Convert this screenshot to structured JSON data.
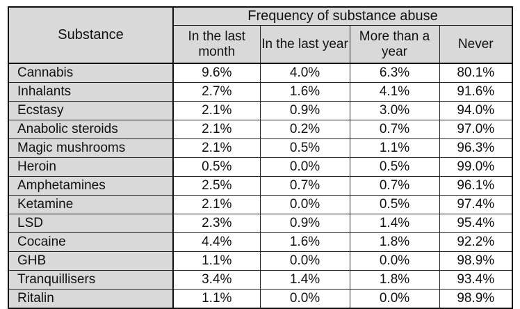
{
  "table": {
    "substance_header": "Substance",
    "group_header": "Frequency of substance abuse",
    "columns": [
      "In the last month",
      "In the last year",
      "More than a year",
      "Never"
    ],
    "rows": [
      {
        "name": "Cannabis",
        "values": [
          "9.6%",
          "4.0%",
          "6.3%",
          "80.1%"
        ]
      },
      {
        "name": "Inhalants",
        "values": [
          "2.7%",
          "1.6%",
          "4.1%",
          "91.6%"
        ]
      },
      {
        "name": "Ecstasy",
        "values": [
          "2.1%",
          "0.9%",
          "3.0%",
          "94.0%"
        ]
      },
      {
        "name": "Anabolic steroids",
        "values": [
          "2.1%",
          "0.2%",
          "0.7%",
          "97.0%"
        ]
      },
      {
        "name": "Magic mushrooms",
        "values": [
          "2.1%",
          "0.5%",
          "1.1%",
          "96.3%"
        ]
      },
      {
        "name": "Heroin",
        "values": [
          "0.5%",
          "0.0%",
          "0.5%",
          "99.0%"
        ]
      },
      {
        "name": "Amphetamines",
        "values": [
          "2.5%",
          "0.7%",
          "0.7%",
          "96.1%"
        ]
      },
      {
        "name": "Ketamine",
        "values": [
          "2.1%",
          "0.0%",
          "0.5%",
          "97.4%"
        ]
      },
      {
        "name": "LSD",
        "values": [
          "2.3%",
          "0.9%",
          "1.4%",
          "95.4%"
        ]
      },
      {
        "name": "Cocaine",
        "values": [
          "4.4%",
          "1.6%",
          "1.8%",
          "92.2%"
        ]
      },
      {
        "name": "GHB",
        "values": [
          "1.1%",
          "0.0%",
          "0.0%",
          "98.9%"
        ]
      },
      {
        "name": "Tranquillisers",
        "values": [
          "3.4%",
          "1.4%",
          "1.8%",
          "93.4%"
        ]
      },
      {
        "name": "Ritalin",
        "values": [
          "1.1%",
          "0.0%",
          "0.0%",
          "98.9%"
        ]
      }
    ]
  },
  "colors": {
    "header_background": "#d9d9d9",
    "label_background": "#d9d9d9",
    "cell_background": "#ffffff",
    "border": "#111111"
  }
}
